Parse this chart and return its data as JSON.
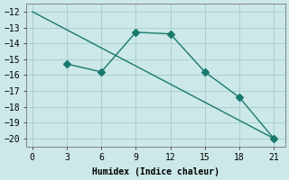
{
  "line1_x": [
    0,
    21
  ],
  "line1_y": [
    -12.0,
    -20.0
  ],
  "line2_x": [
    3,
    6,
    9,
    12,
    15,
    18,
    21
  ],
  "line2_y": [
    -15.3,
    -15.8,
    -13.3,
    -13.4,
    -15.8,
    -17.4,
    -20.0
  ],
  "color": "#1a7a6e",
  "bg_color": "#cce8e8",
  "grid_color": "#aacfcf",
  "xlabel": "Humidex (Indice chaleur)",
  "xlim": [
    -0.5,
    22
  ],
  "ylim": [
    -20.5,
    -11.5
  ],
  "xticks": [
    0,
    3,
    6,
    9,
    12,
    15,
    18,
    21
  ],
  "yticks": [
    -20,
    -19,
    -18,
    -17,
    -16,
    -15,
    -14,
    -13,
    -12
  ],
  "markersize": 4,
  "linewidth": 1.0
}
